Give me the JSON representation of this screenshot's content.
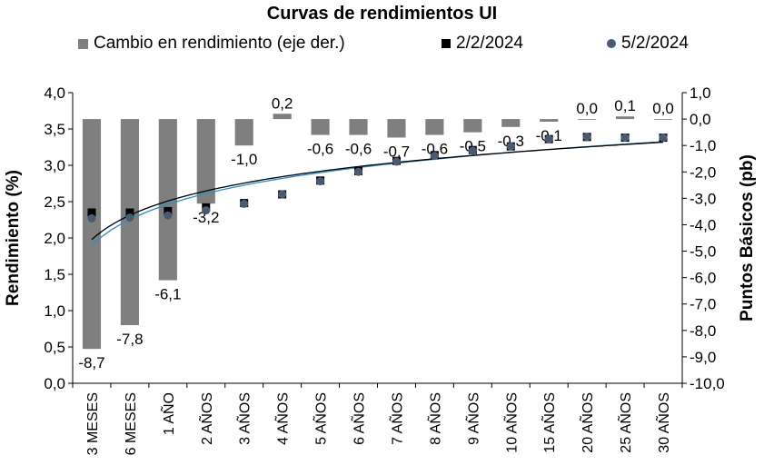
{
  "chart_data": {
    "type": "bar+scatter",
    "title": "Curvas de rendimientos UI",
    "categories": [
      "3 MESES",
      "6 MESES",
      "1 AÑO",
      "2 AÑOS",
      "3 AÑOS",
      "4 AÑOS",
      "5 AÑOS",
      "6 AÑOS",
      "7 AÑOS",
      "8 AÑOS",
      "9 AÑOS",
      "10 AÑOS",
      "15 AÑOS",
      "20 AÑOS",
      "25 AÑOS",
      "30 AÑOS"
    ],
    "series": [
      {
        "name": "Cambio en rendimiento (eje der.)",
        "kind": "bar",
        "axis": "right",
        "values": [
          -8.7,
          -7.8,
          -6.1,
          -3.2,
          -1.0,
          0.2,
          -0.6,
          -0.6,
          -0.7,
          -0.6,
          -0.5,
          -0.3,
          -0.1,
          0.0,
          0.1,
          0.0
        ]
      },
      {
        "name": "2/2/2024",
        "kind": "marker-square",
        "axis": "left",
        "values": [
          2.35,
          2.35,
          2.37,
          2.42,
          2.48,
          2.6,
          2.79,
          2.92,
          3.06,
          3.14,
          3.21,
          3.26,
          3.36,
          3.39,
          3.38,
          3.38
        ]
      },
      {
        "name": "5/2/2024",
        "kind": "marker-circle",
        "axis": "left",
        "values": [
          2.27,
          2.28,
          2.31,
          2.38,
          2.47,
          2.6,
          2.78,
          2.91,
          3.05,
          3.13,
          3.2,
          3.26,
          3.36,
          3.39,
          3.38,
          3.38
        ]
      }
    ],
    "bar_labels": [
      "-8,7",
      "-7,8",
      "-6,1",
      "-3,2",
      "-1,0",
      "0,2",
      "-0,6",
      "-0,6",
      "-0,7",
      "-0,6",
      "-0,5",
      "-0,3",
      "-0,1",
      "0,0",
      "0,1",
      "0,0"
    ],
    "ylabel": "Rendimiento (%)",
    "y2label": "Puntos Básicos (pb)",
    "ylim": [
      0,
      4
    ],
    "y2lim": [
      -10,
      1
    ],
    "yticks": [
      "0,0",
      "0,5",
      "1,0",
      "1,5",
      "2,0",
      "2,5",
      "3,0",
      "3,5",
      "4,0"
    ],
    "y2ticks": [
      "-10,0",
      "-9,0",
      "-8,0",
      "-7,0",
      "-6,0",
      "-5,0",
      "-4,0",
      "-3,0",
      "-2,0",
      "-1,0",
      "0,0",
      "1,0"
    ],
    "grid": false,
    "legend_position": "top",
    "colors": {
      "bars": "#7f7f7f",
      "series1": "#000000",
      "series2": "#4b5a73",
      "trend1": "#000000",
      "trend2": "#2e8fc7"
    }
  }
}
